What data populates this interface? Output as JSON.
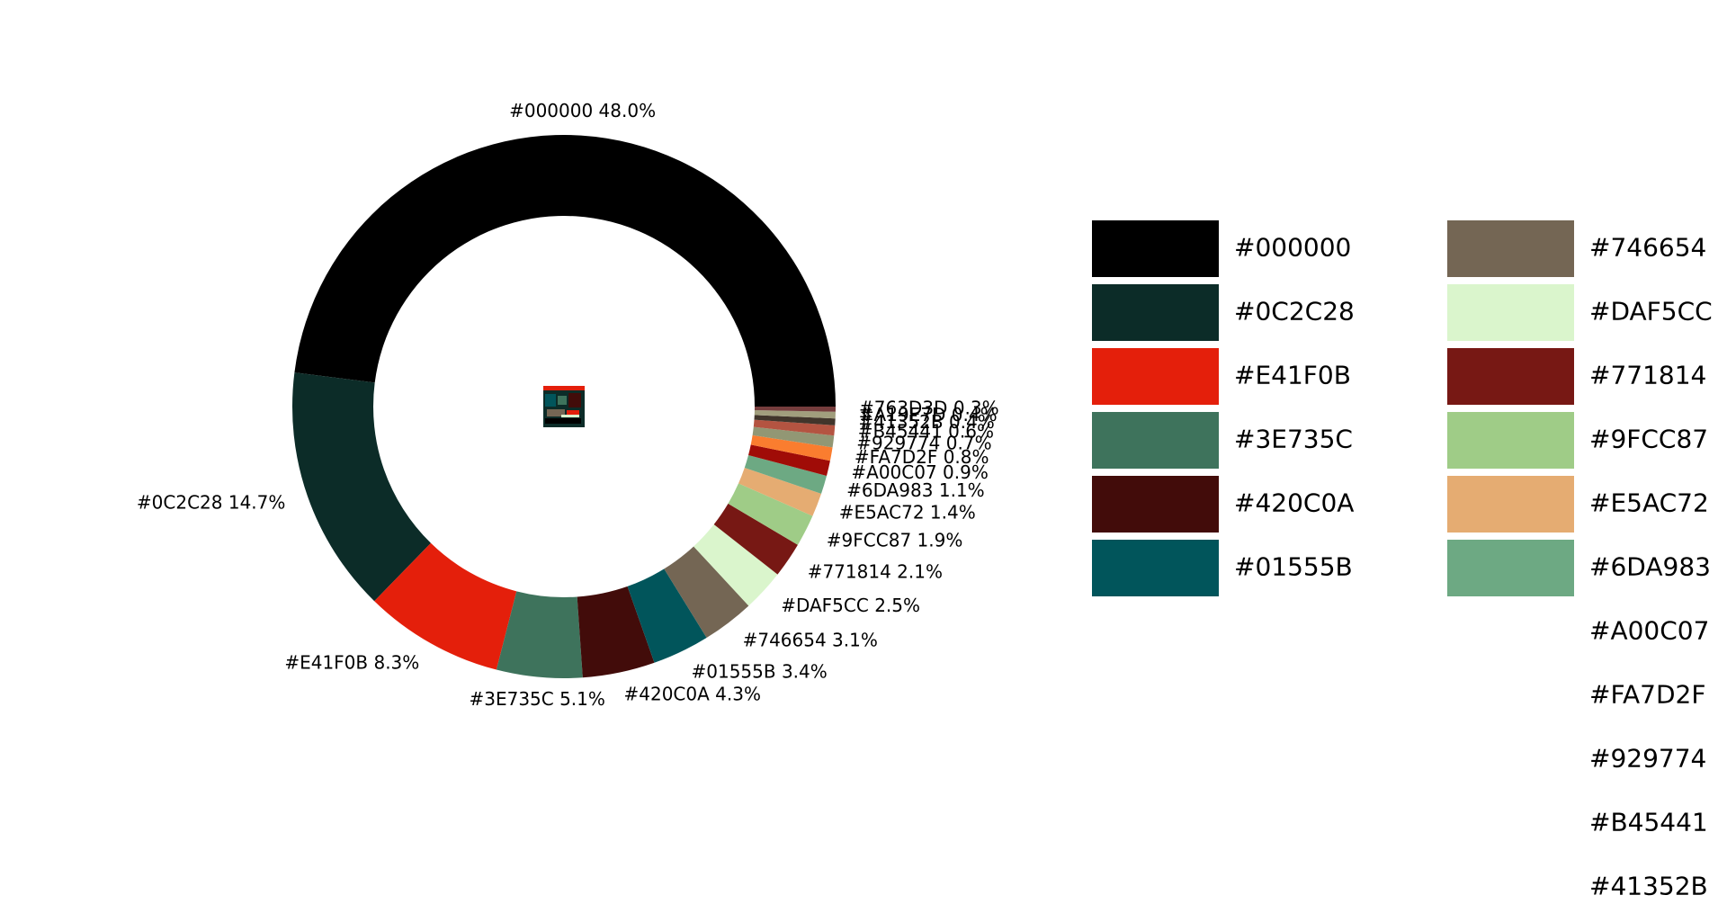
{
  "chart_data": {
    "type": "pie",
    "style": "donut",
    "start_direction": "right",
    "rotation": "counterclockwise",
    "slices": [
      {
        "label": "#000000",
        "value": 48.0,
        "color": "#000000",
        "text": "#000000 48.0%"
      },
      {
        "label": "#0C2C28",
        "value": 14.7,
        "color": "#0C2C28",
        "text": "#0C2C28 14.7%"
      },
      {
        "label": "#E41F0B",
        "value": 8.3,
        "color": "#E41F0B",
        "text": "#E41F0B 8.3%"
      },
      {
        "label": "#3E735C",
        "value": 5.1,
        "color": "#3E735C",
        "text": "#3E735C 5.1%"
      },
      {
        "label": "#420C0A",
        "value": 4.3,
        "color": "#420C0A",
        "text": "#420C0A 4.3%"
      },
      {
        "label": "#01555B",
        "value": 3.4,
        "color": "#01555B",
        "text": "#01555B 3.4%"
      },
      {
        "label": "#746654",
        "value": 3.1,
        "color": "#746654",
        "text": "#746654 3.1%"
      },
      {
        "label": "#DAF5CC",
        "value": 2.5,
        "color": "#DAF5CC",
        "text": "#DAF5CC 2.5%"
      },
      {
        "label": "#771814",
        "value": 2.1,
        "color": "#771814",
        "text": "#771814 2.1%"
      },
      {
        "label": "#9FCC87",
        "value": 1.9,
        "color": "#9FCC87",
        "text": "#9FCC87 1.9%"
      },
      {
        "label": "#E5AC72",
        "value": 1.4,
        "color": "#E5AC72",
        "text": "#E5AC72 1.4%"
      },
      {
        "label": "#6DA983",
        "value": 1.1,
        "color": "#6DA983",
        "text": "#6DA983 1.1%"
      },
      {
        "label": "#A00C07",
        "value": 0.9,
        "color": "#A00C07",
        "text": "#A00C07 0.9%"
      },
      {
        "label": "#FA7D2F",
        "value": 0.8,
        "color": "#FA7D2F",
        "text": "#FA7D2F 0.8%"
      },
      {
        "label": "#929774",
        "value": 0.7,
        "color": "#929774",
        "text": "#929774 0.7%"
      },
      {
        "label": "#B45441",
        "value": 0.6,
        "color": "#B45441",
        "text": "#B45441 0.6%"
      },
      {
        "label": "#41352B",
        "value": 0.4,
        "color": "#41352B",
        "text": "#41352B 0.4%"
      },
      {
        "label": "#A19E7D",
        "value": 0.4,
        "color": "#A19E7D",
        "text": "#A19E7D 0.4%"
      },
      {
        "label": "#763D3D",
        "value": 0.3,
        "color": "#763D3D",
        "text": "#763D3D 0.3%"
      }
    ],
    "legend": {
      "placement": "right",
      "columns": 2,
      "entries": [
        {
          "label": "#000000",
          "color": "#000000",
          "swatch": true
        },
        {
          "label": "#0C2C28",
          "color": "#0C2C28",
          "swatch": true
        },
        {
          "label": "#E41F0B",
          "color": "#E41F0B",
          "swatch": true
        },
        {
          "label": "#3E735C",
          "color": "#3E735C",
          "swatch": true
        },
        {
          "label": "#420C0A",
          "color": "#420C0A",
          "swatch": true
        },
        {
          "label": "#01555B",
          "color": "#01555B",
          "swatch": true
        },
        {
          "label": "#746654",
          "color": "#746654",
          "swatch": true
        },
        {
          "label": "#DAF5CC",
          "color": "#DAF5CC",
          "swatch": true
        },
        {
          "label": "#771814",
          "color": "#771814",
          "swatch": true
        },
        {
          "label": "#9FCC87",
          "color": "#9FCC87",
          "swatch": true
        },
        {
          "label": "#E5AC72",
          "color": "#E5AC72",
          "swatch": true
        },
        {
          "label": "#6DA983",
          "color": "#6DA983",
          "swatch": true
        },
        {
          "label": "#A00C07",
          "color": "#A00C07",
          "swatch": false
        },
        {
          "label": "#FA7D2F",
          "color": "#FA7D2F",
          "swatch": false
        },
        {
          "label": "#929774",
          "color": "#929774",
          "swatch": false
        },
        {
          "label": "#B45441",
          "color": "#B45441",
          "swatch": false
        },
        {
          "label": "#41352B",
          "color": "#41352B",
          "swatch": false
        }
      ]
    },
    "center_image": "thumbnail-image"
  }
}
